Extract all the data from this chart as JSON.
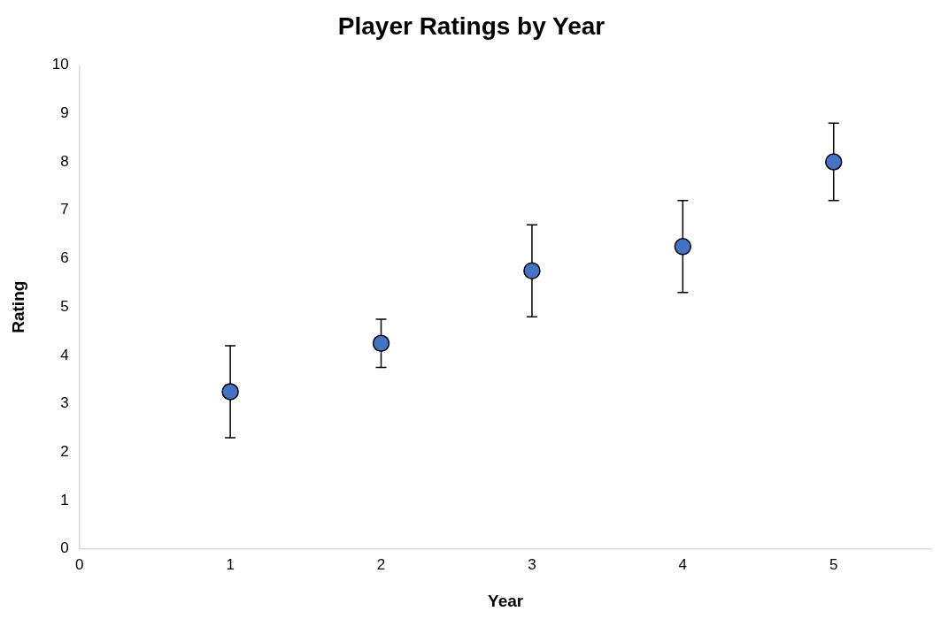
{
  "chart_data": {
    "type": "scatter",
    "title": "Player Ratings by Year",
    "xlabel": "Year",
    "ylabel": "Rating",
    "x": [
      1,
      2,
      3,
      4,
      5
    ],
    "series": [
      {
        "color": "#4472c4",
        "values": [
          3.25,
          4.25,
          5.75,
          6.25,
          8
        ],
        "errors": [
          0.95,
          0.5,
          0.95,
          0.95,
          0.8
        ]
      }
    ],
    "xlim": [
      0,
      5.65
    ],
    "xticks": [
      0,
      1,
      2,
      3,
      4,
      5
    ],
    "ylim": [
      0,
      10
    ],
    "yticks": [
      0,
      1,
      2,
      3,
      4,
      5,
      6,
      7,
      8,
      9,
      10
    ],
    "grid": false,
    "legend": false,
    "marker": "circle"
  }
}
